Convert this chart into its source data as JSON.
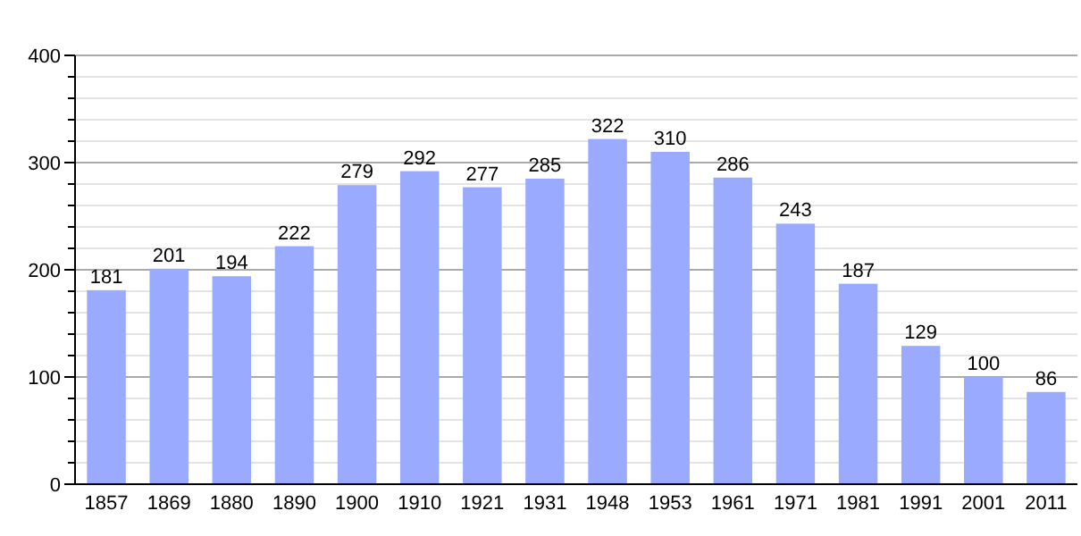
{
  "chart_data": {
    "type": "bar",
    "categories": [
      "1857",
      "1869",
      "1880",
      "1890",
      "1900",
      "1910",
      "1921",
      "1931",
      "1948",
      "1953",
      "1961",
      "1971",
      "1981",
      "1991",
      "2001",
      "2011"
    ],
    "values": [
      181,
      201,
      194,
      222,
      279,
      292,
      277,
      285,
      322,
      310,
      286,
      243,
      187,
      129,
      100,
      86
    ],
    "color": "#99aaff",
    "ylim": [
      0,
      400
    ],
    "yticks": [
      0,
      {
        "value": 20,
        "label": null
      },
      {
        "value": 40,
        "label": null
      },
      {
        "value": 60,
        "label": null
      },
      {
        "value": 80,
        "label": null
      },
      100,
      {
        "value": 120,
        "label": null
      },
      {
        "value": 140,
        "label": null
      },
      {
        "value": 160,
        "label": null
      },
      {
        "value": 180,
        "label": null
      },
      200,
      {
        "value": 220,
        "label": null
      },
      {
        "value": 240,
        "label": null
      },
      {
        "value": 260,
        "label": null
      },
      {
        "value": 280,
        "label": null
      },
      300,
      {
        "value": 320,
        "label": null
      },
      {
        "value": 340,
        "label": null
      },
      {
        "value": 360,
        "label": null
      },
      {
        "value": 380,
        "label": null
      },
      400
    ],
    "grid": "y",
    "data_labels": true
  }
}
